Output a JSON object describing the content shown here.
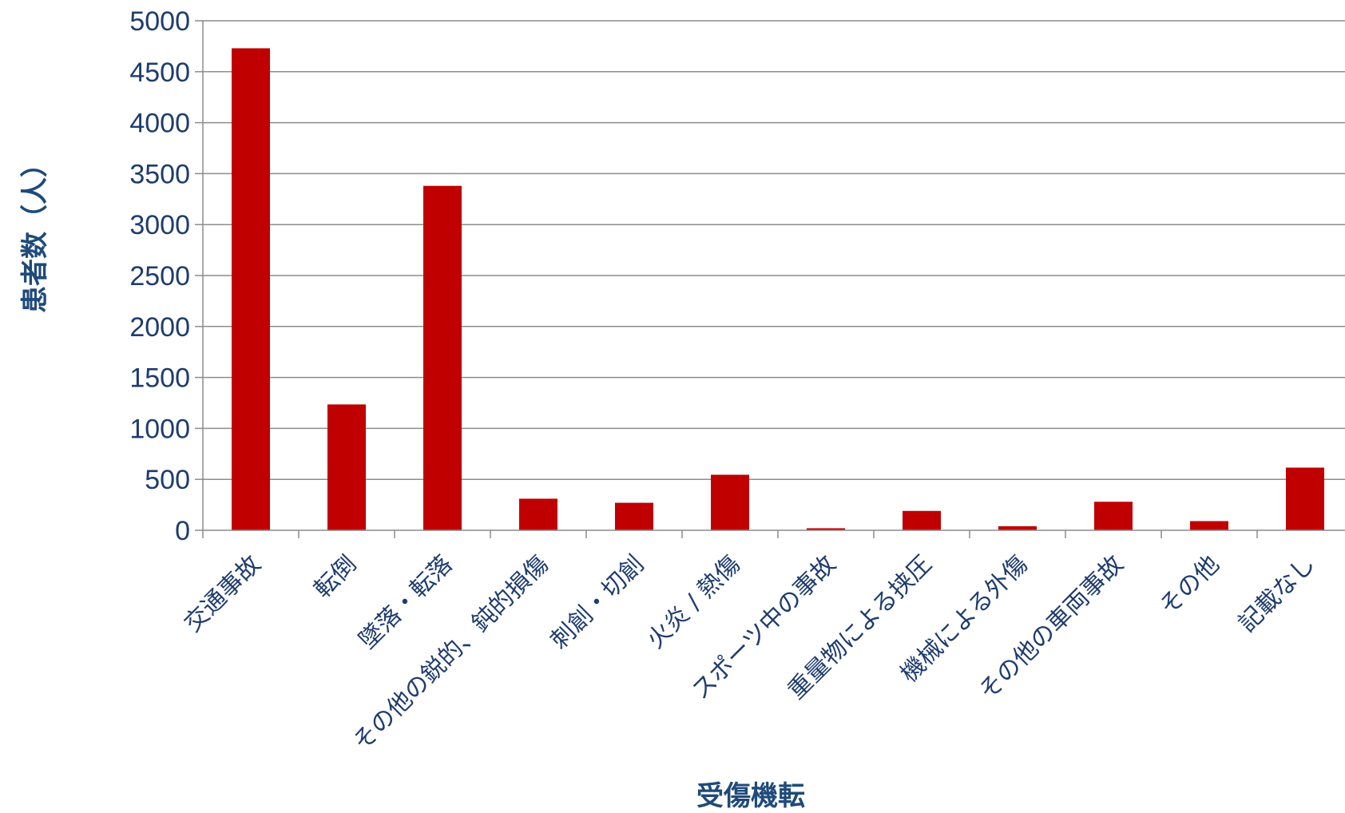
{
  "chart_data": {
    "type": "bar",
    "title": "",
    "xlabel": "受傷機転",
    "ylabel": "患者数（人）",
    "ylim": [
      0,
      5000
    ],
    "yticks": [
      0,
      500,
      1000,
      1500,
      2000,
      2500,
      3000,
      3500,
      4000,
      4500,
      5000
    ],
    "grid": true,
    "categories": [
      "交通事故",
      "転倒",
      "墜落・転落",
      "その他の鋭的、鈍的損傷",
      "刺創・切創",
      "火炎 / 熱傷",
      "スポーツ中の事故",
      "重量物による挟圧",
      "機械による外傷",
      "その他の車両事故",
      "その他",
      "記載なし"
    ],
    "values": [
      4730,
      1235,
      3380,
      310,
      270,
      545,
      20,
      190,
      40,
      280,
      90,
      615
    ],
    "colors": {
      "bar": "#c00000",
      "grid": "#8c8c8c",
      "axis": "#8c8c8c",
      "text": "#1f3c6e"
    }
  }
}
